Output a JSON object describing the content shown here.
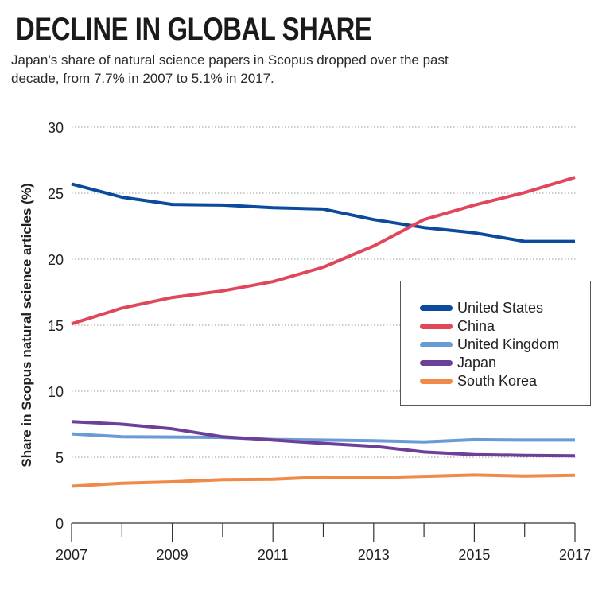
{
  "header": {
    "title": "DECLINE IN GLOBAL SHARE",
    "subtitle_line1": "Japan’s share of natural science papers in Scopus dropped over the past",
    "subtitle_line2": "decade, from 7.7% in 2007 to 5.1% in 2017."
  },
  "chart_data": {
    "type": "line",
    "title": "DECLINE IN GLOBAL SHARE",
    "subtitle": "Japan’s share of natural science papers in Scopus dropped over the past decade, from 7.7% in 2007 to 5.1% in 2017.",
    "xlabel": "",
    "ylabel": "Share in Scopus natural science articles (%)",
    "x": [
      2007,
      2008,
      2009,
      2010,
      2011,
      2012,
      2013,
      2014,
      2015,
      2016,
      2017
    ],
    "xlim": [
      2007,
      2017
    ],
    "ylim": [
      0,
      30
    ],
    "xticks": [
      2007,
      2008,
      2009,
      2010,
      2011,
      2012,
      2013,
      2014,
      2015,
      2016,
      2017
    ],
    "xtick_labels": [
      "2007",
      "",
      "2009",
      "",
      "2011",
      "",
      "2013",
      "",
      "2015",
      "",
      "2017"
    ],
    "yticks": [
      0,
      5,
      10,
      15,
      20,
      25,
      30
    ],
    "ytick_labels": [
      "0",
      "5",
      "10",
      "15",
      "20",
      "25",
      "30"
    ],
    "grid": "horizontal dotted",
    "legend_position": "right-middle",
    "series": [
      {
        "name": "United States",
        "color": "#0b4a9c",
        "values": [
          25.7,
          24.7,
          24.15,
          24.1,
          23.9,
          23.8,
          23.0,
          22.4,
          22.0,
          21.35,
          21.35
        ]
      },
      {
        "name": "China",
        "color": "#e0475a",
        "values": [
          15.1,
          16.3,
          17.1,
          17.6,
          18.3,
          19.4,
          21.0,
          23.0,
          24.1,
          25.05,
          26.2
        ]
      },
      {
        "name": "United Kingdom",
        "color": "#6a9bd6",
        "values": [
          6.77,
          6.55,
          6.53,
          6.5,
          6.35,
          6.3,
          6.25,
          6.16,
          6.33,
          6.3,
          6.3
        ]
      },
      {
        "name": "Japan",
        "color": "#6e3f98",
        "values": [
          7.7,
          7.5,
          7.15,
          6.55,
          6.3,
          6.05,
          5.83,
          5.4,
          5.2,
          5.14,
          5.1
        ]
      },
      {
        "name": "South Korea",
        "color": "#f08a48",
        "values": [
          2.8,
          3.03,
          3.13,
          3.3,
          3.33,
          3.5,
          3.45,
          3.55,
          3.65,
          3.57,
          3.63
        ]
      }
    ]
  }
}
